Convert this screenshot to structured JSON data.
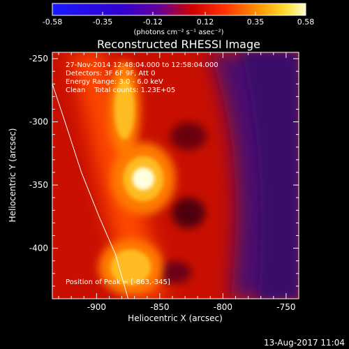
{
  "chart_data": {
    "type": "heatmap",
    "title": "Reconstructed RHESSI Image",
    "xlabel": "Heliocentric X (arcsec)",
    "ylabel": "Heliocentric Y (arcsec)",
    "xlim": [
      -935,
      -740
    ],
    "ylim": [
      -440,
      -245
    ],
    "xticks": [
      -900,
      -850,
      -800,
      -750
    ],
    "xtick_labels": [
      "-900",
      "-850",
      "-800",
      "-750"
    ],
    "yticks": [
      -400,
      -350,
      -300,
      -250
    ],
    "ytick_labels": [
      "-400",
      "-350",
      "-300",
      "-250"
    ],
    "colorbar": {
      "range": [
        -0.58,
        0.58
      ],
      "ticks": [
        -0.58,
        -0.35,
        -0.12,
        0.12,
        0.35,
        0.58
      ],
      "tick_labels": [
        "-0.58",
        "-0.35",
        "-0.12",
        "0.12",
        "0.35",
        "0.58"
      ],
      "unit": "(photons cm⁻² s⁻¹ asec⁻²)"
    },
    "annotations": [
      "27-Nov-2014 12:48:04.000 to 12:58:04.000",
      "Detectors: 3F 6F 9F, Att 0",
      "Energy Range: 3.0 - 6.0 keV",
      "Clean    Total counts: 1.23E+05"
    ],
    "peak_label": "Position of Peak = [-863,-345]",
    "peak": {
      "x": -863,
      "y": -345
    },
    "limb_curve": [
      [
        -935,
        -270
      ],
      [
        -925,
        -300
      ],
      [
        -912,
        -340
      ],
      [
        -898,
        -375
      ],
      [
        -885,
        -405
      ],
      [
        -875,
        -440
      ]
    ],
    "sources": [
      {
        "x": -863,
        "y": -345,
        "rx": 16,
        "ry": 18,
        "peak": 0.58
      },
      {
        "x": -873,
        "y": -415,
        "rx": 16,
        "ry": 14,
        "peak": 0.45
      },
      {
        "x": -878,
        "y": -290,
        "rx": 8,
        "ry": 24,
        "peak": 0.3
      }
    ]
  },
  "footer": {
    "timestamp": "13-Aug-2017 11:04"
  },
  "colors": {
    "background": "#000000",
    "foreground": "#ffffff"
  }
}
